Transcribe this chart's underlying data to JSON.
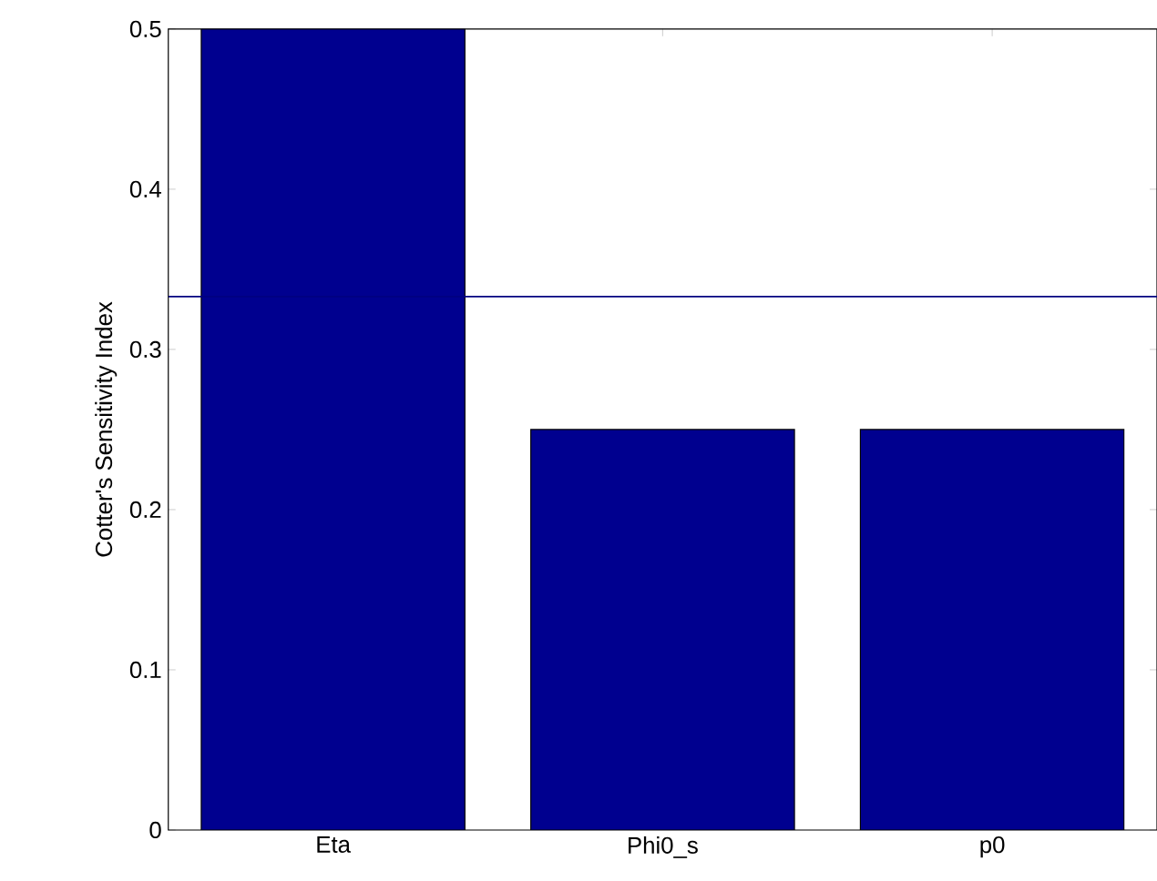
{
  "chart_data": {
    "type": "bar",
    "ylabel": "Cotter's Sensitivity Index",
    "categories": [
      "Eta",
      "Phi0_s",
      "p0"
    ],
    "values": [
      0.5,
      0.25,
      0.25
    ],
    "color": "#00008f",
    "ylim": [
      0,
      0.5
    ],
    "yticks": [
      0,
      0.1,
      0.2,
      0.3,
      0.4,
      0.5
    ],
    "grid": false,
    "ref_lines": [
      {
        "axis": "y",
        "value": 0.333,
        "color": "#000080"
      }
    ]
  }
}
